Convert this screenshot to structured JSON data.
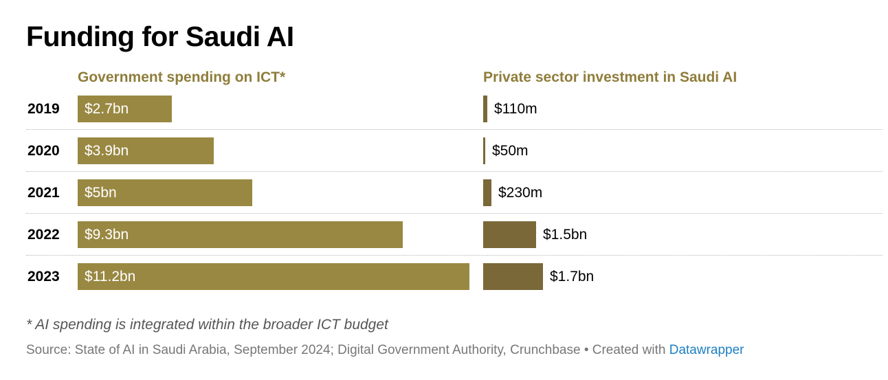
{
  "title": "Funding for Saudi AI",
  "footnote": "* AI spending is integrated within the broader ICT budget",
  "source": {
    "text": "Source: State of AI in Saudi Arabia, September 2024; Digital Government Authority, Crunchbase • Created with ",
    "link_label": "Datawrapper"
  },
  "colors": {
    "government_bar": "#998842",
    "private_bar": "#7a6838",
    "header_text": "#8f7d3b",
    "link": "#1c7fc3"
  },
  "chart_data": [
    {
      "type": "bar",
      "orientation": "horizontal",
      "title": "Government spending on ICT*",
      "categories": [
        "2019",
        "2020",
        "2021",
        "2022",
        "2023"
      ],
      "values": [
        2.7,
        3.9,
        5,
        9.3,
        11.2
      ],
      "unit": "$bn",
      "labels": [
        "$2.7bn",
        "$3.9bn",
        "$5bn",
        "$9.3bn",
        "$11.2bn"
      ],
      "label_position": "inside"
    },
    {
      "type": "bar",
      "orientation": "horizontal",
      "title": "Private sector investment in Saudi AI",
      "categories": [
        "2019",
        "2020",
        "2021",
        "2022",
        "2023"
      ],
      "values": [
        0.11,
        0.05,
        0.23,
        1.5,
        1.7
      ],
      "unit": "$bn",
      "labels": [
        "$110m",
        "$50m",
        "$230m",
        "$1.5bn",
        "$1.7bn"
      ],
      "label_position": "outside"
    }
  ]
}
